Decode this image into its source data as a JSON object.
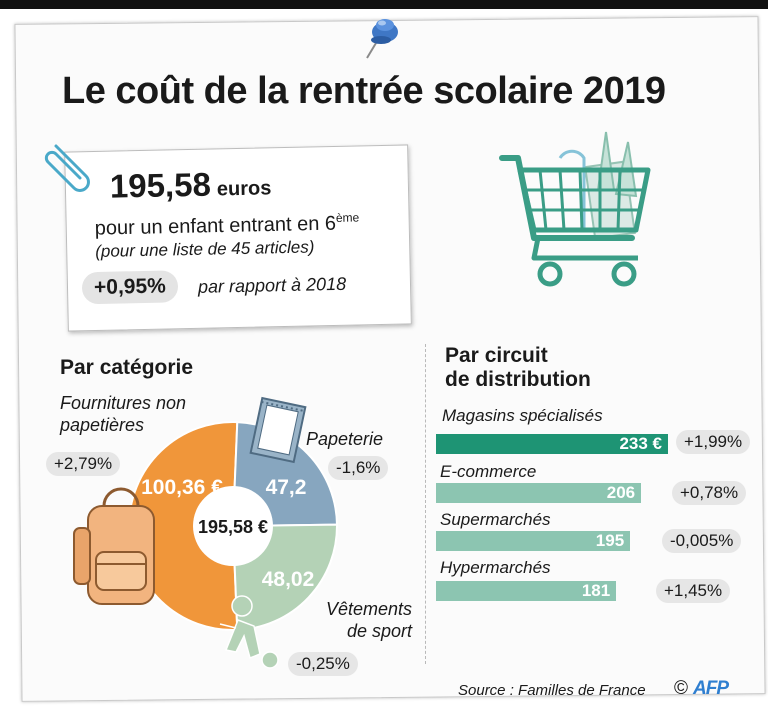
{
  "title": "Le coût de la rentrée scolaire 2019",
  "summary": {
    "total_value": "195,58",
    "total_unit": "euros",
    "description_main": "pour un enfant entrant en 6",
    "description_sup": "ème",
    "description_note": "(pour une liste de 45 articles)",
    "change": "+0,95%",
    "change_label": "par rapport à 2018"
  },
  "category": {
    "section_title": "Par catégorie",
    "center_total": "195,58 €",
    "items": [
      {
        "name_line1": "Fournitures non",
        "name_line2": "papetières",
        "value_label": "100,36 €",
        "change": "+2,79%",
        "color": "#f0963a"
      },
      {
        "name_line1": "Papeterie",
        "name_line2": "",
        "value_label": "47,2",
        "change": "-1,6%",
        "color": "#87a6bf"
      },
      {
        "name_line1": "Vêtements",
        "name_line2": "de sport",
        "value_label": "48,02",
        "change": "-0,25%",
        "color": "#b4d2b6"
      }
    ]
  },
  "distribution": {
    "title_line1": "Par circuit",
    "title_line2": "de distribution",
    "items": [
      {
        "name": "Magasins spécialisés",
        "value_label": "233 €",
        "change": "+1,99%"
      },
      {
        "name": "E-commerce",
        "value_label": "206",
        "change": "+0,78%"
      },
      {
        "name": "Supermarchés",
        "value_label": "195",
        "change": "-0,005%"
      },
      {
        "name": "Hypermarchés",
        "value_label": "181",
        "change": "+1,45%"
      }
    ]
  },
  "footer": {
    "source": "Source : Familles de France",
    "copyright": "©",
    "agency": "AFP"
  },
  "colors": {
    "bar_highlight": "#1e9474",
    "bar_default": "#8cc5b1",
    "orange": "#f0963a",
    "blue_grey": "#87a6bf",
    "pale_green": "#b4d2b6"
  },
  "chart_data": [
    {
      "type": "pie",
      "title": "Par catégorie",
      "categories": [
        "Fournitures non papetières",
        "Papeterie",
        "Vêtements de sport"
      ],
      "values": [
        100.36,
        47.2,
        48.02
      ],
      "changes": [
        "+2,79%",
        "-1,6%",
        "-0,25%"
      ],
      "center_label": "195,58 €",
      "unit": "€"
    },
    {
      "type": "bar",
      "orientation": "horizontal",
      "title": "Par circuit de distribution",
      "categories": [
        "Magasins spécialisés",
        "E-commerce",
        "Supermarchés",
        "Hypermarchés"
      ],
      "values": [
        233,
        206,
        195,
        181
      ],
      "changes": [
        "+1,99%",
        "+0,78%",
        "-0,005%",
        "+1,45%"
      ],
      "unit": "€"
    }
  ]
}
